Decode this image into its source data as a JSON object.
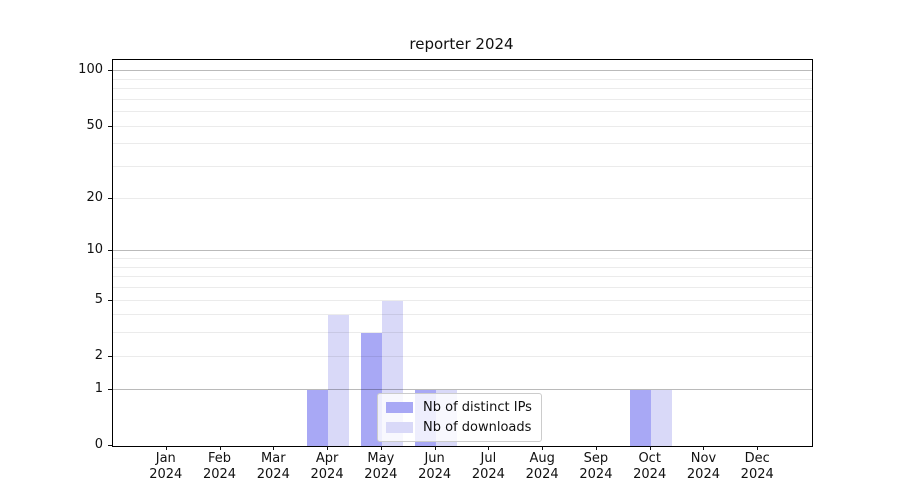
{
  "title": "reporter 2024",
  "chart_data": {
    "type": "bar",
    "title": "reporter 2024",
    "categories": [
      "Jan 2024",
      "Feb 2024",
      "Mar 2024",
      "Apr 2024",
      "May 2024",
      "Jun 2024",
      "Jul 2024",
      "Aug 2024",
      "Sep 2024",
      "Oct 2024",
      "Nov 2024",
      "Dec 2024"
    ],
    "series": [
      {
        "name": "Nb of distinct IPs",
        "color": "#a8a8f5",
        "values": [
          0,
          0,
          0,
          1,
          3,
          1,
          0,
          0,
          0,
          1,
          0,
          0
        ]
      },
      {
        "name": "Nb of downloads",
        "color": "#d9d9f8",
        "values": [
          0,
          0,
          0,
          4,
          5,
          1,
          0,
          0,
          0,
          1,
          0,
          0
        ]
      }
    ],
    "xlabel": "",
    "ylabel": "",
    "yscale": "log1p",
    "ylim": [
      0,
      115
    ],
    "yticks": [
      0,
      1,
      2,
      5,
      10,
      20,
      50,
      100
    ],
    "grid_major_values": [
      1,
      10,
      100
    ],
    "grid_minor_values": [
      2,
      3,
      4,
      5,
      6,
      7,
      8,
      9,
      20,
      30,
      40,
      50,
      60,
      70,
      80,
      90
    ],
    "grid": "on",
    "legend_position": "lower center"
  }
}
